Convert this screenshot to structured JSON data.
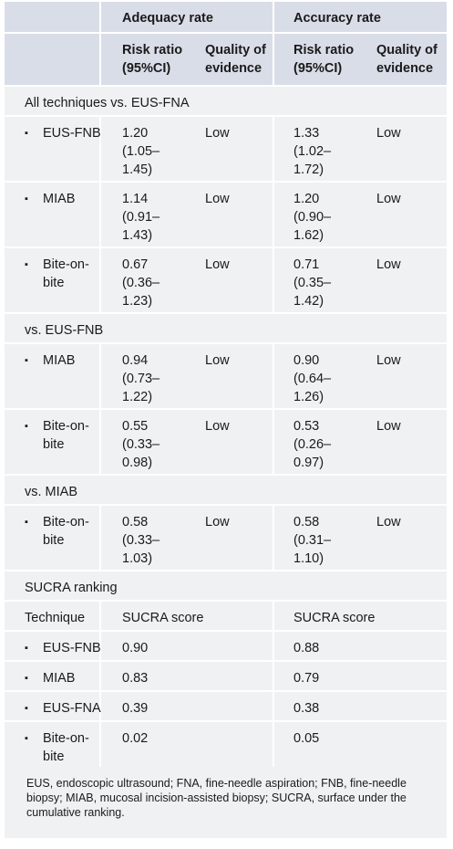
{
  "header": {
    "adequacy_rate": "Adequacy rate",
    "accuracy_rate": "Accuracy rate",
    "risk_ratio_l1": "Risk ratio",
    "risk_ratio_l2": "(95%CI)",
    "quality_l1": "Quality of",
    "quality_l2": "evidence"
  },
  "sections": {
    "all_vs_fna": "All techniques vs. EUS-FNA",
    "vs_fnb": "vs. EUS-FNB",
    "vs_miab": "vs. MIAB",
    "sucra": "SUCRA ranking"
  },
  "rows": [
    {
      "technique": [
        "EUS-FNB"
      ],
      "adequacy_rr": [
        "1.20",
        "(1.05–",
        "1.45)"
      ],
      "adequacy_q": "Low",
      "accuracy_rr": [
        "1.33",
        "(1.02–",
        "1.72)"
      ],
      "accuracy_q": "Low"
    },
    {
      "technique": [
        "MIAB"
      ],
      "adequacy_rr": [
        "1.14",
        "(0.91–",
        "1.43)"
      ],
      "adequacy_q": "Low",
      "accuracy_rr": [
        "1.20",
        "(0.90–",
        "1.62)"
      ],
      "accuracy_q": "Low"
    },
    {
      "technique": [
        "Bite-on-",
        "bite"
      ],
      "adequacy_rr": [
        "0.67",
        "(0.36–",
        "1.23)"
      ],
      "adequacy_q": "Low",
      "accuracy_rr": [
        "0.71",
        "(0.35–",
        "1.42)"
      ],
      "accuracy_q": "Low"
    },
    {
      "technique": [
        "MIAB"
      ],
      "adequacy_rr": [
        "0.94",
        "(0.73–",
        "1.22)"
      ],
      "adequacy_q": "Low",
      "accuracy_rr": [
        "0.90",
        "(0.64–",
        "1.26)"
      ],
      "accuracy_q": "Low"
    },
    {
      "technique": [
        "Bite-on-",
        "bite"
      ],
      "adequacy_rr": [
        "0.55",
        "(0.33–",
        "0.98)"
      ],
      "adequacy_q": "Low",
      "accuracy_rr": [
        "0.53",
        "(0.26–",
        "0.97)"
      ],
      "accuracy_q": "Low"
    },
    {
      "technique": [
        "Bite-on-",
        "bite"
      ],
      "adequacy_rr": [
        "0.58",
        "(0.33–",
        "1.03)"
      ],
      "adequacy_q": "Low",
      "accuracy_rr": [
        "0.58",
        "(0.31–",
        "1.10)"
      ],
      "accuracy_q": "Low"
    }
  ],
  "sucra_header": {
    "technique": "Technique",
    "adequacy_score": "SUCRA score",
    "accuracy_score": "SUCRA score"
  },
  "sucra_rows": [
    {
      "technique": [
        "EUS-FNB"
      ],
      "adequacy": "0.90",
      "accuracy": "0.88"
    },
    {
      "technique": [
        "MIAB"
      ],
      "adequacy": "0.83",
      "accuracy": "0.79"
    },
    {
      "technique": [
        "EUS-FNA"
      ],
      "adequacy": "0.39",
      "accuracy": "0.38"
    },
    {
      "technique": [
        "Bite-on-",
        "bite"
      ],
      "adequacy": "0.02",
      "accuracy": "0.05"
    }
  ],
  "bullet_char": "▪",
  "footnote": "EUS, endoscopic ultrasound; FNA, fine-needle aspiration; FNB, fine-needle biopsy; MIAB, mucosal incision-assisted biopsy; SUCRA, surface under the cumulative ranking."
}
